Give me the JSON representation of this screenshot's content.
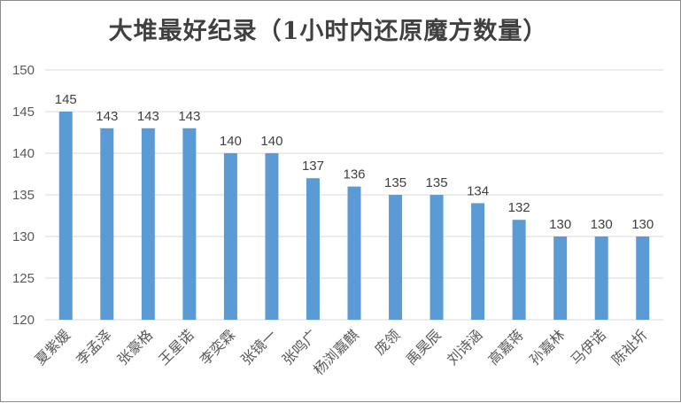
{
  "chart_data": {
    "type": "bar",
    "title": "大堆最好纪录（1小时内还原魔方数量）",
    "categories": [
      "夏紫媛",
      "李孟泽",
      "张豪格",
      "王星诺",
      "李奕霖",
      "张镜一",
      "张鸣广",
      "杨浏嘉麒",
      "庞领",
      "禹昊辰",
      "刘诗涵",
      "高嘉蒋",
      "孙嘉林",
      "马伊诺",
      "陈祉圻"
    ],
    "values": [
      145,
      143,
      143,
      143,
      140,
      140,
      137,
      136,
      135,
      135,
      134,
      132,
      130,
      130,
      130
    ],
    "ylim": [
      120,
      150
    ],
    "yticks": [
      120,
      125,
      130,
      135,
      140,
      145,
      150
    ],
    "grid": true,
    "legend": "none",
    "bar_color": "#5b9bd5"
  }
}
